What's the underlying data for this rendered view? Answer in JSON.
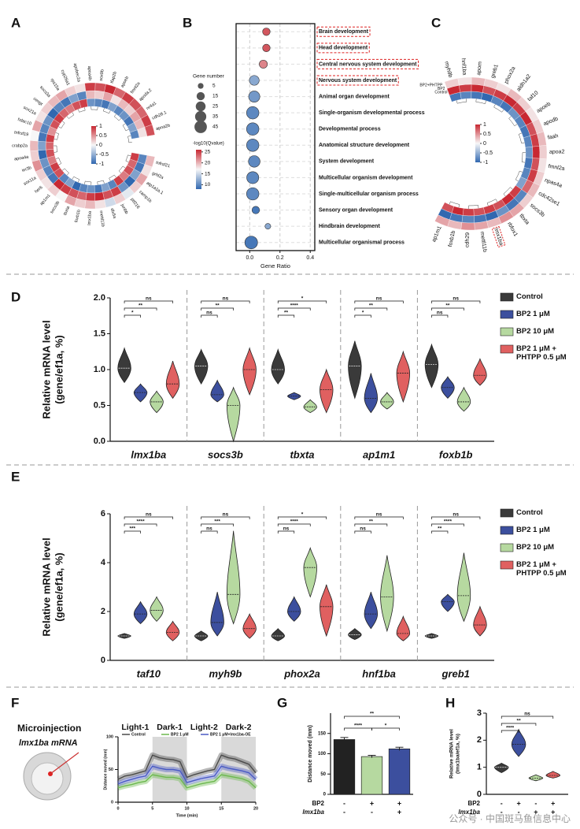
{
  "panel_labels": [
    "A",
    "B",
    "C",
    "D",
    "E",
    "F",
    "G",
    "H"
  ],
  "injection": {
    "title": "Microinjection",
    "label": "lmx1ba mRNA"
  },
  "watermark": "公众号 · 中国斑马鱼信息中心",
  "chart_data": [
    {
      "type": "circular_heatmap",
      "genes": [
        "tnfrsf21",
        "grhl2a",
        "atp1a1a.1",
        "camp1b",
        "ptf216",
        "junbb",
        "dlx5a",
        "mettl11b",
        "lmx1ba",
        "foxb1b",
        "tbxta",
        "socs3b",
        "ap1m1",
        "her6",
        "sox11a",
        "ier3b",
        "apoa4a",
        "crabp2a",
        "tnfrsf19",
        "hdac10",
        "sox21a",
        "cengt",
        "socs3a",
        "rps15a",
        "cyp26a1",
        "apobec2a",
        "apoa4b",
        "sox9b",
        "tfap2b",
        "apoeb",
        "fmnl2a",
        "apoda.2",
        "nr4a1",
        "cdh28.1",
        "apoa2b"
      ],
      "values": [
        [
          0.9,
          -0.8,
          0.3
        ],
        [
          0.7,
          -0.9,
          0.1
        ],
        [
          0.8,
          -0.6,
          0.4
        ],
        [
          0.6,
          -1,
          0.2
        ],
        [
          0.9,
          -0.7,
          -0.1
        ],
        [
          -0.8,
          0.9,
          0.2
        ],
        [
          -0.6,
          0.8,
          -0.2
        ],
        [
          -0.9,
          1,
          0.1
        ],
        [
          -0.7,
          0.9,
          0.3
        ],
        [
          -0.8,
          0.7,
          0.2
        ],
        [
          -1,
          0.8,
          0.4
        ],
        [
          -0.6,
          0.9,
          0
        ],
        [
          -0.8,
          1,
          0.2
        ],
        [
          0.8,
          -0.9,
          0.1
        ],
        [
          0.9,
          -0.8,
          0.2
        ],
        [
          0.6,
          -0.7,
          0.5
        ],
        [
          0.8,
          -1,
          0.2
        ],
        [
          0.7,
          -0.6,
          0.3
        ],
        [
          0.9,
          -0.9,
          0
        ],
        [
          0.5,
          -0.8,
          0.4
        ],
        [
          0.8,
          -0.7,
          0.1
        ],
        [
          0.9,
          -1,
          0.2
        ],
        [
          0.7,
          -0.8,
          0.3
        ],
        [
          0.6,
          -0.9,
          0.4
        ],
        [
          0.8,
          -0.6,
          0.2
        ],
        [
          0.9,
          -0.8,
          0.1
        ],
        [
          -0.7,
          0.3,
          0.9
        ],
        [
          -0.8,
          0.2,
          0.8
        ],
        [
          -0.9,
          0.4,
          1
        ],
        [
          -0.6,
          0.1,
          0.7
        ],
        [
          -0.8,
          0.3,
          0.9
        ],
        [
          -0.7,
          0.2,
          0.8
        ],
        [
          -0.9,
          0.4,
          0.7
        ],
        [
          -0.6,
          0.3,
          0.9
        ],
        [
          -0.8,
          0.1,
          0.8
        ]
      ],
      "colorbar_ticks": [
        1,
        0.5,
        0,
        -0.5,
        -1
      ]
    },
    {
      "type": "bubble",
      "terms": [
        "Brain development",
        "Head development",
        "Central nervous system development",
        "Nervous system development",
        "Animal organ development",
        "Single-organism developmental process",
        "Developmental process",
        "Anatomical structure development",
        "System development",
        "Multicellular organism development",
        "Single-multicellular organism process",
        "Sensory organ development",
        "Hindbrain development",
        "Multicellular organismal process"
      ],
      "ratio": [
        0.11,
        0.11,
        0.09,
        0.03,
        0.03,
        0.02,
        0.02,
        0.02,
        0.03,
        0.02,
        0.02,
        0.04,
        0.12,
        0.01
      ],
      "gene_number": [
        12,
        12,
        15,
        25,
        35,
        45,
        45,
        45,
        38,
        42,
        45,
        12,
        5,
        48
      ],
      "neg_log10_q": [
        24,
        24,
        22,
        12,
        11,
        10,
        10,
        10,
        10,
        10,
        10,
        9,
        12,
        9
      ],
      "highlight": [
        0,
        1,
        2,
        3
      ],
      "xlim": [
        -0.09,
        0.43
      ],
      "xticks": [
        {
          "value": 0,
          "label": "0.0"
        },
        0.2,
        0.4
      ],
      "xlabel": "Gene Ratio",
      "size_legend": {
        "title": "Gene number",
        "values": [
          5,
          15,
          25,
          35,
          45
        ]
      },
      "color_legend": {
        "title": "-log10(Qvalue)",
        "ticks": [
          25,
          20,
          15,
          10
        ],
        "lim": [
          8,
          26
        ]
      }
    },
    {
      "type": "circular_heatmap",
      "genes": [
        "myh9b",
        "hnf1ba",
        "apom",
        "greb1",
        "phox2a",
        "aldh1a2",
        "taf10",
        "apoeb",
        "apodb",
        "faah",
        "apoa2",
        "fmnl2a",
        "npas4a",
        "cdc42se1",
        "socs3b",
        "tbxta",
        "rbfox1",
        "lmx1ba",
        "mettl11b",
        "cdh29",
        "foxb1b",
        "ap1m1"
      ],
      "rings": [
        "Control",
        "BP2",
        "BP2+PHTPP"
      ],
      "values": [
        [
          -0.9,
          1,
          0.2
        ],
        [
          -0.8,
          0.9,
          0.1
        ],
        [
          -0.9,
          1,
          0.3
        ],
        [
          -1,
          0.8,
          0.2
        ],
        [
          -0.8,
          0.9,
          0.1
        ],
        [
          -0.9,
          1,
          0.3
        ],
        [
          -0.7,
          0.9,
          0.2
        ],
        [
          -0.8,
          1,
          0.1
        ],
        [
          -0.9,
          0.8,
          0.2
        ],
        [
          -0.8,
          0.9,
          0.3
        ],
        [
          -0.7,
          1,
          0.2
        ],
        [
          -0.9,
          0.8,
          0.1
        ],
        [
          -0.8,
          0.9,
          0.2
        ],
        [
          -0.6,
          0.7,
          0.3
        ],
        [
          0.9,
          -0.8,
          0.2
        ],
        [
          1,
          -0.9,
          0.4
        ],
        [
          0.8,
          -0.7,
          0.5
        ],
        [
          0.9,
          -1,
          0.3
        ],
        [
          0.8,
          -0.9,
          0.4
        ],
        [
          0.9,
          -0.8,
          0.5
        ],
        [
          1,
          -0.9,
          0.3
        ],
        [
          0.8,
          -1,
          0.4
        ]
      ],
      "highlight": [
        17
      ],
      "colorbar_ticks": [
        1,
        0.5,
        0,
        -0.5,
        -1
      ]
    },
    {
      "type": "violin",
      "categories": [
        "lmx1ba",
        "socs3b",
        "tbxta",
        "ap1m1",
        "foxb1b"
      ],
      "ylabel": [
        "Relative mRNA level",
        "(gene/ef1a, %)"
      ],
      "ylim": [
        0,
        2
      ],
      "yticks": [
        {
          "value": 0,
          "label": "0.0"
        },
        0.5,
        {
          "value": 1,
          "label": "1.0"
        },
        1.5,
        {
          "value": 2,
          "label": "2.0"
        }
      ],
      "separators": true,
      "series": [
        {
          "name": "Control",
          "color": "#3a3a3a",
          "values": [
            1.02,
            1.05,
            1.0,
            1.05,
            1.07
          ],
          "min": [
            0.82,
            0.8,
            0.8,
            0.6,
            0.75
          ],
          "max": [
            1.3,
            1.28,
            1.28,
            1.4,
            1.35
          ]
        },
        {
          "name": "BP2 1 μM",
          "color": "#3c4f9e",
          "values": [
            0.68,
            0.65,
            0.63,
            0.6,
            0.75
          ],
          "min": [
            0.55,
            0.55,
            0.58,
            0.4,
            0.6
          ],
          "max": [
            0.8,
            0.85,
            0.68,
            0.95,
            0.9
          ]
        },
        {
          "name": "BP2 10 μM",
          "color": "#b6d9a0",
          "values": [
            0.55,
            0.5,
            0.48,
            0.55,
            0.55
          ],
          "min": [
            0.4,
            0.0,
            0.4,
            0.45,
            0.42
          ],
          "max": [
            0.7,
            0.75,
            0.58,
            0.68,
            0.75
          ]
        },
        {
          "name": "BP2 1 μM + PHTPP 0.5 μM",
          "color": "#e06060",
          "values": [
            0.8,
            1.0,
            0.72,
            0.95,
            0.92
          ],
          "min": [
            0.6,
            0.65,
            0.4,
            0.55,
            0.78
          ],
          "max": [
            1.12,
            1.3,
            1.0,
            1.25,
            1.15
          ]
        }
      ],
      "significance": [
        [
          "*",
          "**",
          "ns"
        ],
        [
          "ns",
          "**",
          "ns"
        ],
        [
          "**",
          "****",
          "*"
        ],
        [
          "*",
          "**",
          "ns"
        ],
        [
          "ns",
          "**",
          "ns"
        ]
      ]
    },
    {
      "type": "violin",
      "categories": [
        "taf10",
        "myh9b",
        "phox2a",
        "hnf1ba",
        "greb1"
      ],
      "ylabel": [
        "Relative mRNA level",
        "(gene/ef1a, %)"
      ],
      "ylim": [
        0,
        6
      ],
      "yticks": [
        0,
        2,
        4,
        6
      ],
      "separators": true,
      "series": [
        {
          "name": "Control",
          "color": "#3a3a3a",
          "values": [
            1.0,
            1.0,
            1.0,
            1.05,
            1.0
          ],
          "min": [
            0.9,
            0.8,
            0.8,
            0.85,
            0.9
          ],
          "max": [
            1.1,
            1.2,
            1.3,
            1.3,
            1.1
          ]
        },
        {
          "name": "BP2 1 μM",
          "color": "#3c4f9e",
          "values": [
            1.9,
            1.55,
            2.0,
            1.9,
            2.4
          ],
          "min": [
            1.5,
            1.0,
            1.6,
            1.3,
            2.0
          ],
          "max": [
            2.4,
            2.8,
            2.6,
            2.8,
            2.7
          ]
        },
        {
          "name": "BP2 10 μM",
          "color": "#b6d9a0",
          "values": [
            2.05,
            2.7,
            3.8,
            2.6,
            2.65
          ],
          "min": [
            1.6,
            1.5,
            2.6,
            1.2,
            1.6
          ],
          "max": [
            2.6,
            5.3,
            4.6,
            4.3,
            4.4
          ]
        },
        {
          "name": "BP2 1 μM + PHTPP 0.5 μM",
          "color": "#e06060",
          "values": [
            1.15,
            1.3,
            2.2,
            1.1,
            1.45
          ],
          "min": [
            0.8,
            0.9,
            1.0,
            0.8,
            1.0
          ],
          "max": [
            1.6,
            1.9,
            3.1,
            1.8,
            2.2
          ]
        }
      ],
      "significance": [
        [
          "***",
          "****",
          "ns"
        ],
        [
          "ns",
          "***",
          "ns"
        ],
        [
          "ns",
          "****",
          "*"
        ],
        [
          "ns",
          "**",
          "ns"
        ],
        [
          "**",
          "****",
          "ns"
        ]
      ]
    },
    {
      "type": "line",
      "x": [
        0,
        1,
        2,
        3,
        4,
        5,
        6,
        7,
        8,
        9,
        10,
        11,
        12,
        13,
        14,
        15,
        16,
        17,
        18,
        19,
        20
      ],
      "xlim": [
        0,
        20
      ],
      "xticks": [
        0,
        5,
        10,
        15,
        20
      ],
      "ylim": [
        0,
        100
      ],
      "yticks": [
        0,
        50,
        100
      ],
      "xlabel": "Time (min)",
      "ylabel": "Distance moved (mm)",
      "shaded": [
        [
          5,
          10
        ],
        [
          15,
          20
        ]
      ],
      "phase_labels": [
        "Light-1",
        "Dark-1",
        "Light-2",
        "Dark-2"
      ],
      "series": [
        {
          "name": "Control",
          "color": "#4a4a4a",
          "values": [
            35,
            40,
            42,
            45,
            48,
            72,
            68,
            66,
            65,
            62,
            38,
            42,
            45,
            48,
            50,
            72,
            68,
            66,
            62,
            58,
            45
          ]
        },
        {
          "name": "BP2 1 μM",
          "color": "#6cb84e",
          "values": [
            22,
            25,
            27,
            30,
            32,
            42,
            40,
            38,
            38,
            36,
            22,
            25,
            28,
            30,
            32,
            42,
            40,
            38,
            36,
            32,
            22
          ]
        },
        {
          "name": "BP2 1 μM+lmx1ba-OE",
          "color": "#4a5bc4",
          "values": [
            28,
            32,
            35,
            38,
            40,
            55,
            52,
            50,
            50,
            48,
            30,
            33,
            36,
            38,
            40,
            55,
            52,
            50,
            48,
            45,
            35
          ]
        }
      ]
    },
    {
      "type": "bar",
      "ylabel": "Distance moved (mm)",
      "ylim": [
        0,
        200
      ],
      "yticks": [
        0,
        50,
        100,
        150
      ],
      "values": [
        135,
        93,
        112
      ],
      "errors": [
        5,
        3,
        4
      ],
      "colors": [
        "#222222",
        "#b6d9a0",
        "#3c4f9e"
      ],
      "conditions": [
        {
          "name": "BP2",
          "values": [
            "-",
            "+",
            "+"
          ]
        },
        {
          "name": "lmx1ba",
          "values": [
            "-",
            "-",
            "+"
          ]
        }
      ],
      "comparisons": [
        {
          "groups": [
            0,
            2
          ],
          "label": "**"
        },
        {
          "groups": [
            0,
            1
          ],
          "label": "****"
        },
        {
          "groups": [
            1,
            2
          ],
          "label": "*"
        }
      ]
    },
    {
      "type": "violin",
      "ylabel": [
        "Relative mRNA level",
        "(lmx1ba/ef1a, %)"
      ],
      "ylim": [
        0,
        3
      ],
      "yticks": [
        0,
        1,
        2,
        3
      ],
      "series": [
        {
          "color": "#3a3a3a",
          "values": [
            1.0
          ],
          "min": [
            0.8
          ],
          "max": [
            1.15
          ]
        },
        {
          "color": "#3c4f9e",
          "values": [
            1.85
          ],
          "min": [
            1.4
          ],
          "max": [
            2.4
          ]
        },
        {
          "color": "#b6d9a0",
          "values": [
            0.6
          ],
          "min": [
            0.5
          ],
          "max": [
            0.72
          ]
        },
        {
          "color": "#e06060",
          "values": [
            0.7
          ],
          "min": [
            0.6
          ],
          "max": [
            0.85
          ]
        }
      ],
      "conditions": [
        {
          "name": "BP2",
          "values": [
            "-",
            "+",
            "-",
            "+"
          ]
        },
        {
          "name": "lmx1ba",
          "values": [
            "-",
            "-",
            "+",
            "+"
          ]
        }
      ],
      "significance": [
        [
          "****",
          "**",
          "ns"
        ]
      ]
    }
  ]
}
